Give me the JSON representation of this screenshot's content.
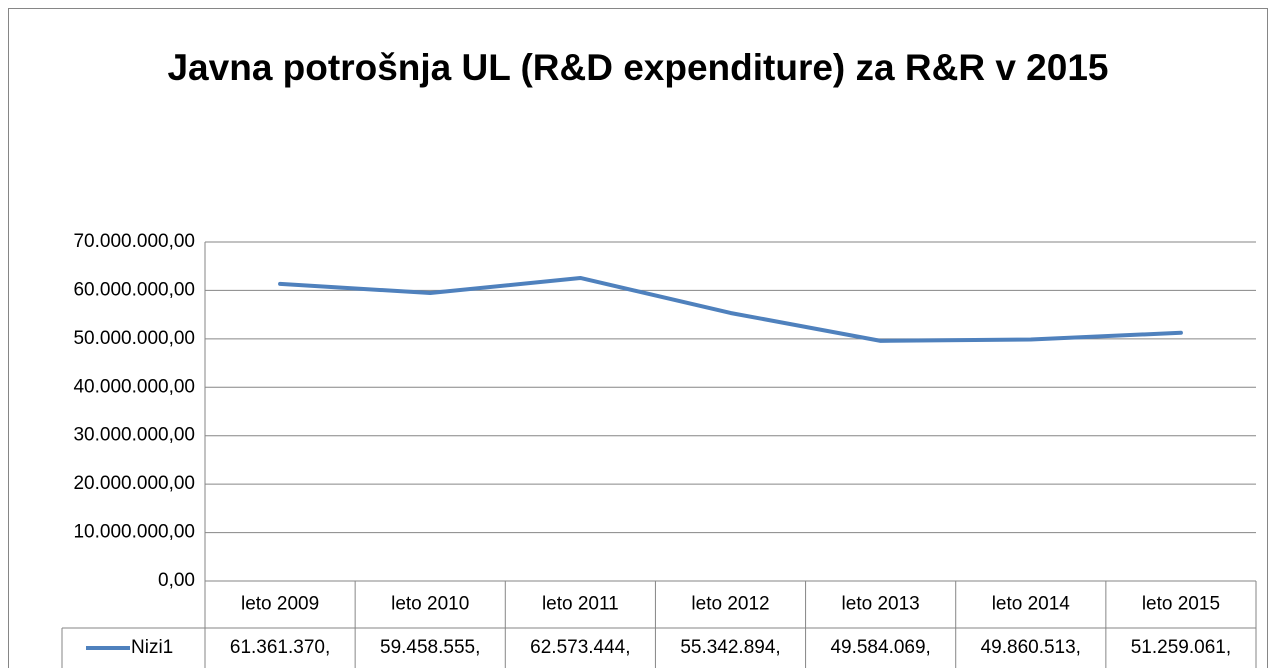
{
  "chart_data": {
    "type": "line",
    "title": "Javna potrošnja UL (R&D expenditure) za R&R v 2015",
    "categories": [
      "leto 2009",
      "leto 2010",
      "leto 2011",
      "leto 2012",
      "leto 2013",
      "leto 2014",
      "leto 2015"
    ],
    "series": [
      {
        "name": "Nizi1",
        "color": "#4f81bd",
        "values": [
          61361370,
          59458555,
          62573444,
          55342894,
          49584069,
          49860513,
          51259061
        ],
        "value_labels": [
          "61.361.370,",
          "59.458.555,",
          "62.573.444,",
          "55.342.894,",
          "49.584.069,",
          "49.860.513,",
          "51.259.061,"
        ]
      }
    ],
    "ylim": [
      0,
      70000000
    ],
    "yticks": [
      {
        "value": 0,
        "label": "0,00"
      },
      {
        "value": 10000000,
        "label": "10.000.000,00"
      },
      {
        "value": 20000000,
        "label": "20.000.000,00"
      },
      {
        "value": 30000000,
        "label": "30.000.000,00"
      },
      {
        "value": 40000000,
        "label": "40.000.000,00"
      },
      {
        "value": 50000000,
        "label": "50.000.000,00"
      },
      {
        "value": 60000000,
        "label": "60.000.000,00"
      },
      {
        "value": 70000000,
        "label": "70.000.000,00"
      }
    ],
    "grid": true
  }
}
